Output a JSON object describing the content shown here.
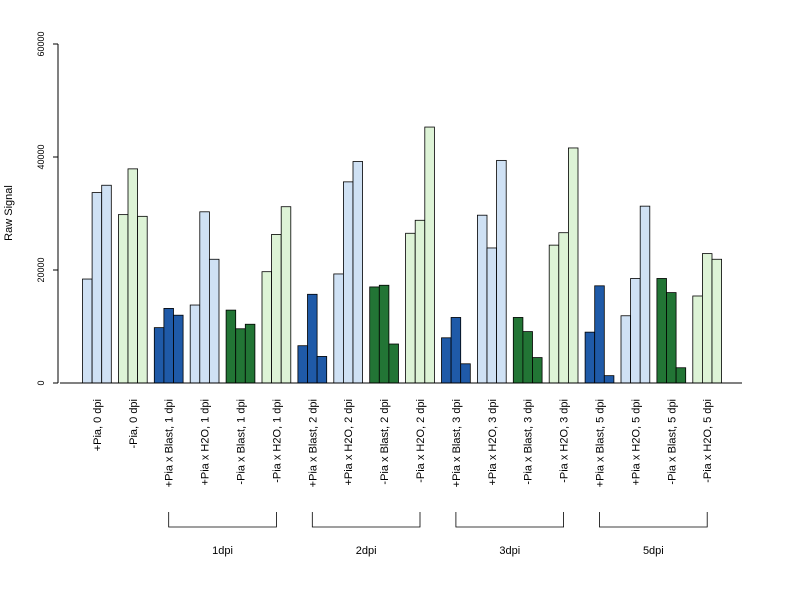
{
  "chart_data": {
    "type": "bar",
    "ylabel": "Raw Signal",
    "ylim": [
      0,
      60000
    ],
    "yticks": [
      "0",
      "20000",
      "40000",
      "60000"
    ],
    "grid": false,
    "legend": "none",
    "colors": {
      "pia_pos_mock": "#cfe1f4",
      "pia_neg_mock": "#ddf3d6",
      "pia_pos_blast": "#1f5aa8",
      "pia_neg_blast": "#227535",
      "outline": "#000000",
      "axis": "#000000"
    },
    "categories": [
      {
        "label": "+Pia, 0 dpi",
        "color": "pia_pos_mock",
        "values": [
          18400,
          33700,
          35000
        ]
      },
      {
        "label": "-Pia, 0 dpi",
        "color": "pia_neg_mock",
        "values": [
          29800,
          37900,
          29500
        ]
      },
      {
        "label": "+Pia x Blast, 1 dpi",
        "color": "pia_pos_blast",
        "values": [
          9800,
          13200,
          12000
        ]
      },
      {
        "label": "+Pia x H2O, 1 dpi",
        "color": "pia_pos_mock",
        "values": [
          13800,
          30300,
          21900
        ]
      },
      {
        "label": "-Pia x Blast, 1 dpi",
        "color": "pia_neg_blast",
        "values": [
          12900,
          9600,
          10400
        ]
      },
      {
        "label": "-Pia x H2O, 1 dpi",
        "color": "pia_neg_mock",
        "values": [
          19700,
          26300,
          31200
        ]
      },
      {
        "label": "+Pia x Blast, 2 dpi",
        "color": "pia_pos_blast",
        "values": [
          6600,
          15700,
          4700
        ]
      },
      {
        "label": "+Pia x H2O, 2 dpi",
        "color": "pia_pos_mock",
        "values": [
          19300,
          35600,
          39200
        ]
      },
      {
        "label": "-Pia x Blast, 2 dpi",
        "color": "pia_neg_blast",
        "values": [
          17000,
          17300,
          6900
        ]
      },
      {
        "label": "-Pia x H2O, 2 dpi",
        "color": "pia_neg_mock",
        "values": [
          26500,
          28800,
          45300
        ]
      },
      {
        "label": "+Pia x Blast, 3 dpi",
        "color": "pia_pos_blast",
        "values": [
          8000,
          11600,
          3400
        ]
      },
      {
        "label": "+Pia x H2O, 3 dpi",
        "color": "pia_pos_mock",
        "values": [
          29700,
          23900,
          39400
        ]
      },
      {
        "label": "-Pia x Blast, 3 dpi",
        "color": "pia_neg_blast",
        "values": [
          11600,
          9100,
          4500
        ]
      },
      {
        "label": "-Pia x H2O, 3 dpi",
        "color": "pia_neg_mock",
        "values": [
          24400,
          26600,
          41600
        ]
      },
      {
        "label": "+Pia x Blast, 5 dpi",
        "color": "pia_pos_blast",
        "values": [
          9000,
          17200,
          1300
        ]
      },
      {
        "label": "+Pia x H2O, 5 dpi",
        "color": "pia_pos_mock",
        "values": [
          11900,
          18500,
          31300
        ]
      },
      {
        "label": "-Pia x Blast, 5 dpi",
        "color": "pia_neg_blast",
        "values": [
          18500,
          16000,
          2700
        ]
      },
      {
        "label": "-Pia x H2O, 5 dpi",
        "color": "pia_neg_mock",
        "values": [
          15400,
          22900,
          21900
        ]
      }
    ],
    "groups": [
      {
        "label": "1dpi",
        "from": 2,
        "to": 5
      },
      {
        "label": "2dpi",
        "from": 6,
        "to": 9
      },
      {
        "label": "3dpi",
        "from": 10,
        "to": 13
      },
      {
        "label": "5dpi",
        "from": 14,
        "to": 17
      }
    ]
  }
}
